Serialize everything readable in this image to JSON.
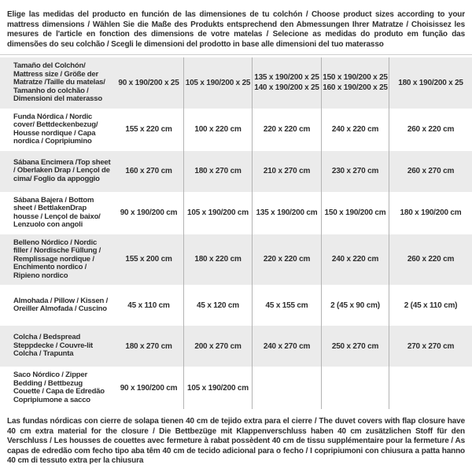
{
  "header_note": "Elige las medidas del producto en función de las dimensiones de tu colchón / Choose product sizes according to your mattress dimensions / Wählen Sie die Maße des Produkts entsprechend den Abmessungen Ihrer Matratze / Choisissez les mesures de l'article en fonction des dimensions de votre matelas / Selecione as medidas do produto em função das dimensões do seu colchão / Scegli le dimensioni del prodotto in base alle dimensioni del tuo materasso",
  "table": {
    "rows": [
      {
        "label": "Tamaño del Colchón/ Mattress size / Größe der Matratze /Taille du matelas/ Tamanho do colchão / Dimensioni del materasso",
        "cells": [
          "90 x 190/200 x 25",
          "105 x 190/200 x 25",
          "135 x 190/200 x 25\n140 x 190/200 x 25",
          "150 x 190/200 x 25\n160 x 190/200 x 25",
          "180 x 190/200 x 25"
        ]
      },
      {
        "label": "Funda Nórdica / Nordic cover/ Bettdeckenbezug/ Housse nordique / Capa nordica / Copripiumino",
        "cells": [
          "155 x 220 cm",
          "100 x 220 cm",
          "220 x 220 cm",
          "240 x 220 cm",
          "260 x 220 cm"
        ]
      },
      {
        "label": "Sábana Encimera /Top sheet / Oberlaken Drap / Lençol de cima/ Foglio da appoggio",
        "cells": [
          "160 x 270 cm",
          "180 x 270 cm",
          "210 x 270 cm",
          "230 x 270 cm",
          "260 x 270 cm"
        ]
      },
      {
        "label": "Sábana Bajera / Bottom sheet / BettlakenDrap housse / Lençol de baixo/ Lenzuolo con angoli",
        "cells": [
          "90 x 190/200 cm",
          "105 x 190/200 cm",
          "135 x 190/200 cm",
          "150 x 190/200 cm",
          "180 x 190/200 cm"
        ]
      },
      {
        "label": "Belleno Nórdico / Nordic filler / Nordische Füllung / Remplissage nordique / Enchimento nordico / Ripieno nordico",
        "cells": [
          "155 x 200 cm",
          "180 x 220 cm",
          "220 x 220 cm",
          "240 x 220 cm",
          "260 x 220 cm"
        ]
      },
      {
        "label": "Almohada / Pillow / Kissen / Oreiller Almofada / Cuscino",
        "cells": [
          "45 x 110 cm",
          "45 x 120 cm",
          "45 x 155 cm",
          "2 (45 x 90 cm)",
          "2 (45 x 110 cm)"
        ]
      },
      {
        "label": "Colcha / Bedspread Steppdecke / Couvre-lit Colcha / Trapunta",
        "cells": [
          "180 x 270 cm",
          "200 x 270 cm",
          "240 x 270 cm",
          "250 x 270 cm",
          "270 x 270 cm"
        ]
      },
      {
        "label": "Saco Nórdico / Zipper Bedding / Bettbezug Couette / Capa de Edredão Copripiumone a sacco",
        "cells": [
          "90 x 190/200 cm",
          "105 x 190/200 cm",
          "",
          "",
          ""
        ]
      }
    ]
  },
  "footer_note": "Las fundas nórdicas con cierre de solapa tienen 40 cm de tejido extra para el cierre / The duvet covers with flap closure have 40 cm extra material for the closure / Die Bettbezüge mit Klappenverschluss haben 40 cm zusätzlichen Stoff für den Verschluss / Les housses de couettes avec fermeture à rabat possèdent 40 cm de tissu supplémentaire pour la fermeture / As capas de edredão com fecho tipo aba têm 40 cm de tecido adicional para o fecho / I copripiumoni con chiusura a patta hanno 40 cm di tessuto extra per la chiusura",
  "colors": {
    "row_alt": "#ebebeb",
    "divider": "#b3b3b3",
    "border_top": "#cdcdcd",
    "text": "#2e2e2e"
  }
}
